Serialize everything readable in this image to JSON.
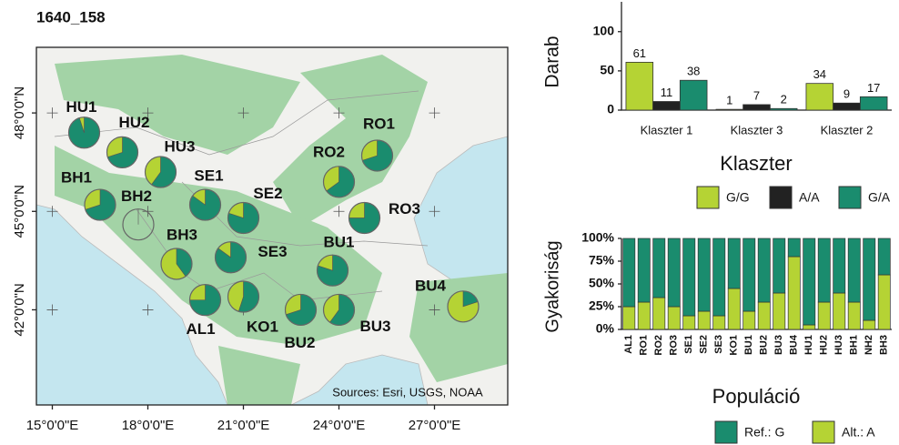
{
  "chart_data": [
    {
      "type": "pie-map",
      "title": "1640_158",
      "source": "Sources: Esri, USGS, NOAA",
      "xlim": [
        14.5,
        29.3
      ],
      "ylim": [
        39.1,
        50.0
      ],
      "xticks": [
        {
          "value": 15,
          "label": "15°0'0\"E"
        },
        {
          "value": 18,
          "label": "18°0'0\"E"
        },
        {
          "value": 21,
          "label": "21°0'0\"E"
        },
        {
          "value": 24,
          "label": "24°0'0\"E"
        },
        {
          "value": 27,
          "label": "27°0'0\"E"
        }
      ],
      "yticks": [
        {
          "value": 42,
          "label": "42°0'0\"N"
        },
        {
          "value": 45,
          "label": "45°0'0\"N"
        },
        {
          "value": 48,
          "label": "48°0'0\"N"
        }
      ],
      "populations": [
        {
          "label": "HU1",
          "lon": 16.0,
          "lat": 47.4
        },
        {
          "label": "HU2",
          "lon": 17.2,
          "lat": 46.8
        },
        {
          "label": "HU3",
          "lon": 18.4,
          "lat": 46.2
        },
        {
          "label": "BH1",
          "lon": 16.5,
          "lat": 45.2
        },
        {
          "label": "BH2",
          "lon": 17.7,
          "lat": 44.6
        },
        {
          "label": "BH3",
          "lon": 18.9,
          "lat": 43.4
        },
        {
          "label": "SE1",
          "lon": 19.8,
          "lat": 45.2
        },
        {
          "label": "SE2",
          "lon": 21.0,
          "lat": 44.8
        },
        {
          "label": "SE3",
          "lon": 20.6,
          "lat": 43.6
        },
        {
          "label": "AL1",
          "lon": 19.8,
          "lat": 42.3
        },
        {
          "label": "KO1",
          "lon": 21.0,
          "lat": 42.4
        },
        {
          "label": "BU2",
          "lon": 22.8,
          "lat": 42.0
        },
        {
          "label": "BU3",
          "lon": 24.0,
          "lat": 42.0
        },
        {
          "label": "BU1",
          "lon": 23.8,
          "lat": 43.2
        },
        {
          "label": "RO1",
          "lon": 25.2,
          "lat": 46.7
        },
        {
          "label": "RO2",
          "lon": 24.0,
          "lat": 45.9
        },
        {
          "label": "RO3",
          "lon": 24.8,
          "lat": 44.8
        },
        {
          "label": "BU4",
          "lon": 27.9,
          "lat": 42.1
        }
      ]
    },
    {
      "type": "bar",
      "ylabel": "Darab",
      "xlabel": "Klaszter",
      "categories": [
        "Klaszter 1",
        "Klaszter 3",
        "Klaszter 2"
      ],
      "series": [
        {
          "name": "G/G",
          "color": "#b5d334",
          "values": [
            61,
            1,
            34
          ]
        },
        {
          "name": "A/A",
          "color": "#222222",
          "values": [
            11,
            7,
            9
          ]
        },
        {
          "name": "G/A",
          "color": "#1a8c6e",
          "values": [
            38,
            2,
            17
          ]
        }
      ],
      "ylim": [
        0,
        138
      ],
      "yticks": [
        0,
        50,
        100
      ]
    },
    {
      "type": "stacked-bar",
      "ylabel": "Gyakoriság",
      "xlabel": "Populáció",
      "categories": [
        "AL1",
        "RO1",
        "RO2",
        "RO3",
        "SE1",
        "SE2",
        "SE3",
        "KO1",
        "BU1",
        "BU2",
        "BU3",
        "BU4",
        "HU1",
        "HU2",
        "HU3",
        "BH1",
        "NH2",
        "BH3"
      ],
      "series": [
        {
          "name": "Ref.: G",
          "color": "#1a8c6e",
          "values": [
            75,
            70,
            65,
            75,
            85,
            80,
            85,
            55,
            80,
            70,
            60,
            20,
            95,
            70,
            60,
            70,
            90,
            40
          ]
        },
        {
          "name": "Alt.: A",
          "color": "#b5d334",
          "values": [
            25,
            30,
            35,
            25,
            15,
            20,
            15,
            45,
            20,
            30,
            40,
            80,
            5,
            30,
            40,
            30,
            10,
            60
          ]
        }
      ],
      "ylim": [
        0,
        100
      ],
      "yticks": [
        {
          "value": 0,
          "label": "0%"
        },
        {
          "value": 25,
          "label": "25%"
        },
        {
          "value": 50,
          "label": "50%"
        },
        {
          "value": 75,
          "label": "75%"
        },
        {
          "value": 100,
          "label": "100%"
        }
      ]
    }
  ]
}
